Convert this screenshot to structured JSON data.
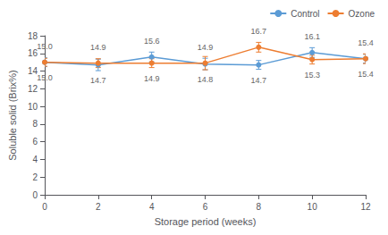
{
  "chart_data": {
    "type": "line",
    "xlabel": "Storage period (weeks)",
    "ylabel": "Soluble solid (Brix%)",
    "x": [
      0,
      2,
      4,
      6,
      8,
      10,
      12
    ],
    "series": [
      {
        "name": "Control",
        "color": "#5B9BD5",
        "values": [
          15.0,
          14.7,
          15.6,
          14.8,
          14.7,
          16.1,
          15.4
        ],
        "errors": [
          0.5,
          0.65,
          0.55,
          0.65,
          0.5,
          0.55,
          0.5
        ],
        "value_labels": [
          "15.0",
          "14.7",
          "15.6",
          "14.8",
          "14.7",
          "16.1",
          "15.4"
        ]
      },
      {
        "name": "Ozone",
        "color": "#ED7D31",
        "values": [
          15.0,
          14.9,
          14.9,
          14.9,
          16.7,
          15.3,
          15.4
        ],
        "errors": [
          0.45,
          0.5,
          0.5,
          0.75,
          0.55,
          0.5,
          0.55
        ],
        "value_labels": [
          "15.0",
          "14.9",
          "14.9",
          "14.9",
          "16.7",
          "15.3",
          "15.4"
        ]
      }
    ],
    "xlim": [
      0,
      12
    ],
    "xticks": [
      0,
      2,
      4,
      6,
      8,
      10,
      12
    ],
    "ylim": [
      0,
      18
    ],
    "yticks": [
      0,
      2,
      4,
      6,
      8,
      10,
      12,
      14,
      16,
      18
    ],
    "grid": false,
    "legend": "upper right",
    "data_labels": true,
    "marker": "circle"
  }
}
